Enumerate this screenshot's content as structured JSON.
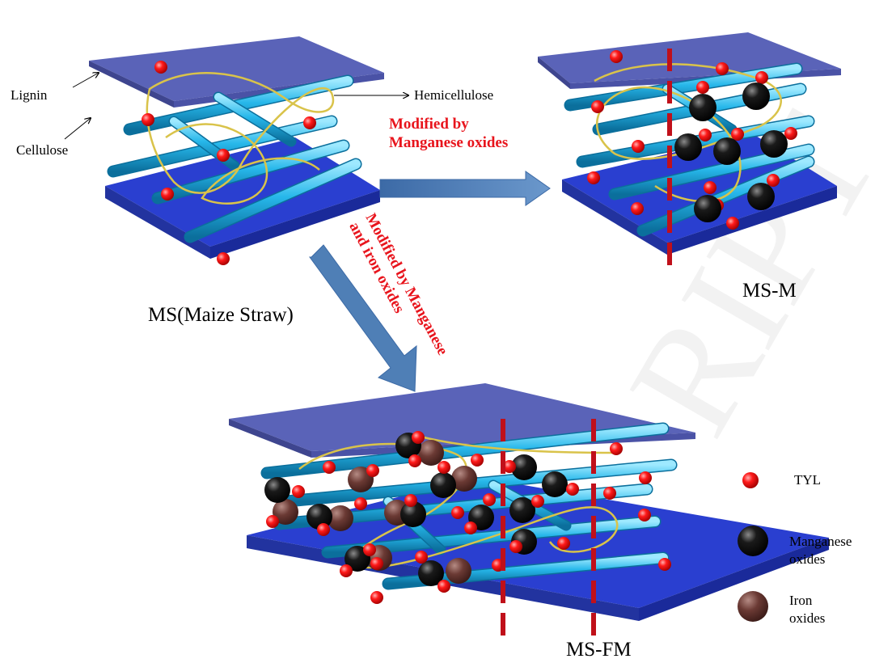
{
  "labels": {
    "lignin": "Lignin",
    "cellulose": "Cellulose",
    "hemicellulose": "Hemicellulose",
    "ms": "MS(Maize Straw)",
    "msm": "MS-M",
    "msfm": "MS-FM"
  },
  "process": {
    "manganese_line1": "Modified by",
    "manganese_line2": "Manganese oxides",
    "mn_fe_line1": "Modified by Manganese",
    "mn_fe_line2": "and iron oxides"
  },
  "legend": {
    "tyl": "TYL",
    "manganese_line1": "Manganese",
    "manganese_line2": "oxides",
    "iron_line1": "Iron",
    "iron_line2": "oxides"
  },
  "watermark": "RIPT",
  "colors": {
    "plate_top": "#5a63b8",
    "plate_bottom": "#2a3fd0",
    "rod": "#27b7ea",
    "fiber": "#d9c34a",
    "tyl": "#ff1a1a",
    "manganese": "#111111",
    "iron": "#6b3a34",
    "cut_line": "#c0101a",
    "arrow": "#4f7fb6",
    "text_red": "#e8141c"
  }
}
